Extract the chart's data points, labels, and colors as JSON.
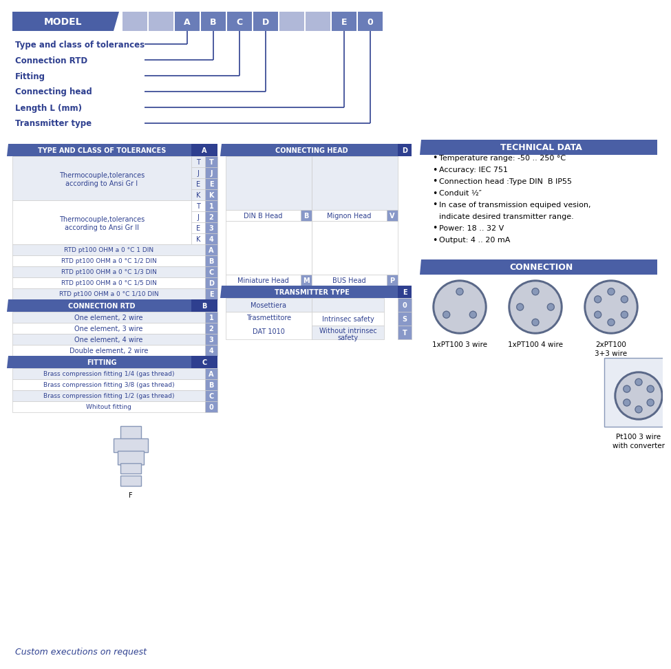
{
  "bg_color": "#ffffff",
  "header_blue": "#4a5fa5",
  "header_light": "#8898c8",
  "row_alt": "#e8ecf4",
  "row_white": "#ffffff",
  "text_blue": "#2e4090",
  "dark_blue": "#2e3f8f",
  "line_color": "#2e3f8f",
  "model_boxes": [
    "",
    "",
    "A",
    "B",
    "C",
    "D",
    "",
    "",
    "E",
    "0"
  ],
  "model_box_colors": [
    "#b0b8d8",
    "#b0b8d8",
    "#6a7db8",
    "#6a7db8",
    "#6a7db8",
    "#6a7db8",
    "#b0b8d8",
    "#b0b8d8",
    "#6a7db8",
    "#6a7db8"
  ],
  "label_lines": [
    [
      "Type and class of tolerances",
      0
    ],
    [
      "Connection RTD",
      1
    ],
    [
      "Fitting",
      2
    ],
    [
      "Connecting head",
      3
    ],
    [
      "Length L (mm)",
      4
    ],
    [
      "Transmitter type",
      5
    ]
  ],
  "tol_header": "TYPE AND CLASS OF TOLERANCES",
  "conn_rtd_header": "CONNECTION RTD",
  "fitting_header": "FITTING",
  "conn_head_header": "CONNECTING HEAD",
  "trans_header": "TRANSMITTER TYPE",
  "rtd_labels": [
    "RTD pt100 OHM a 0 °C 1 DIN",
    "RTD pt100 OHM a 0 °C 1/2 DIN",
    "RTD pt100 OHM a 0 °C 1/3 DIN",
    "RTD pt100 OHM a 0 °C 1/5 DIN",
    "RTD pt100 OHM a 0 °C 1/10 DIN"
  ],
  "rtd_codes": [
    "A",
    "B",
    "C",
    "D",
    "E"
  ],
  "conn_rtd_rows": [
    [
      "One element, 2 wire",
      "1"
    ],
    [
      "One element, 3 wire",
      "2"
    ],
    [
      "One element, 4 wire",
      "3"
    ],
    [
      "Double element, 2 wire",
      "4"
    ]
  ],
  "fitting_rows": [
    [
      "Brass compression fitting 1/4 (gas thread)",
      "A"
    ],
    [
      "Brass compression fitting 3/8 (gas thread)",
      "B"
    ],
    [
      "Brass compression fitting 1/2 (gas thread)",
      "C"
    ],
    [
      "Whitout fitting",
      "0"
    ]
  ],
  "tech_data_header": "TECHNICAL DATA",
  "tech_data_items": [
    "Temperature range: -50 .. 250 °C",
    "Accuracy: IEC 751",
    "Connection head :Type DIN  B IP55",
    "Conduit ½″",
    "In case of transmission equiped vesion,",
    "indicate desired transmitter range.",
    "Power: 18 .. 32 V",
    "Output: 4 .. 20 mA"
  ],
  "conn_header": "CONNECTION",
  "conn_labels": [
    "1xPT100 3 wire",
    "1xPT100 4 wire",
    "2xPT100\n3+3 wire",
    "Pt100 3 wire\nwith converter"
  ],
  "footer_text": "Custom executions on request"
}
